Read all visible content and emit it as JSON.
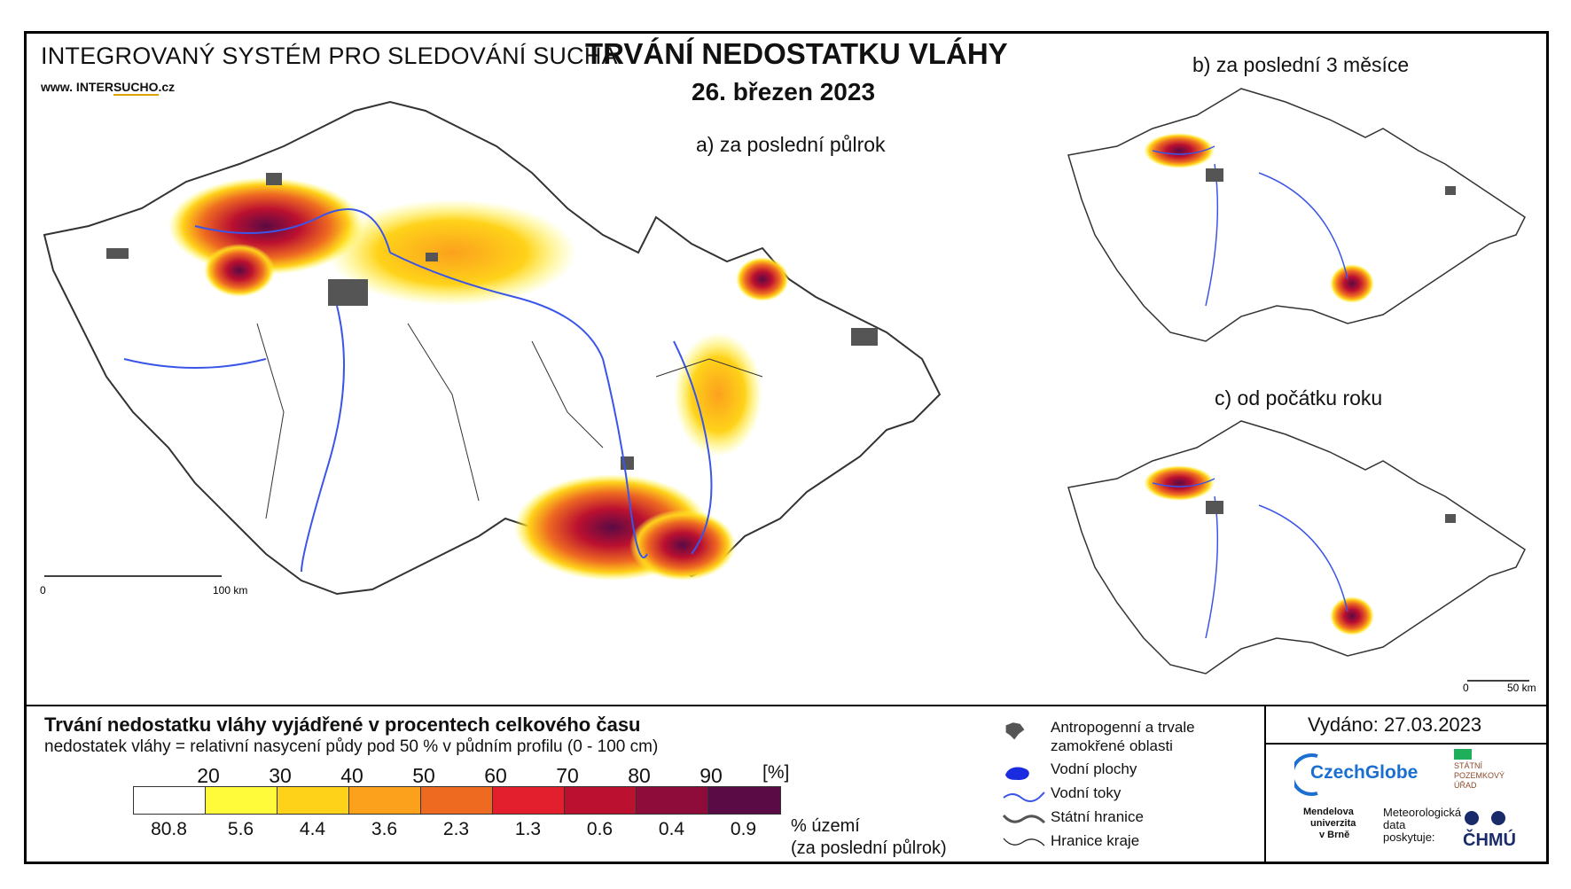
{
  "header": {
    "system_title": "INTEGROVANÝ SYSTÉM PRO SLEDOVÁNÍ SUCHA",
    "website_prefix": "www. INTER",
    "website_accent": "SUCHO",
    "website_suffix": ".cz",
    "main_title": "TRVÁNÍ NEDOSTATKU VLÁHY",
    "date": "26. březen 2023"
  },
  "maps": {
    "a": {
      "label": "a) za poslední půlrok",
      "scale_start": "0",
      "scale_end": "100 km"
    },
    "b": {
      "label": "b) za poslední 3 měsíce"
    },
    "c": {
      "label": "c) od počátku roku",
      "scale_start": "0",
      "scale_end": "50 km"
    }
  },
  "legend": {
    "title": "Trvání nedostatku vláhy vyjádřené v procentech celkového času",
    "subtitle": "nedostatek vláhy = relativní nasycení půdy pod 50 % v půdním profilu (0 - 100 cm)",
    "ticks": [
      "20",
      "30",
      "40",
      "50",
      "60",
      "70",
      "80",
      "90"
    ],
    "unit": "[%]",
    "colors": [
      "#ffffff",
      "#fffb3a",
      "#ffd21a",
      "#fba11c",
      "#ee6a21",
      "#e41f2d",
      "#bb1030",
      "#8e0c3a",
      "#5a0a44"
    ],
    "area_values": [
      "80.8",
      "5.6",
      "4.4",
      "3.6",
      "2.3",
      "1.3",
      "0.6",
      "0.4",
      "0.9"
    ],
    "area_label_1": "% území",
    "area_label_2": "(za poslední půlrok)"
  },
  "key": {
    "anthropogenic_1": "Antropogenní a trvale",
    "anthropogenic_2": "zamokřené oblasti",
    "water_bodies": "Vodní plochy",
    "water_courses": "Vodní toky",
    "state_border": "Státní hranice",
    "region_border": "Hranice kraje"
  },
  "issued": "Vydáno: 27.03.2023",
  "logos": {
    "czechglobe": "CzechGlobe",
    "spu": "STÁTNÍ POZEMKOVÝ ÚŘAD",
    "mendelu_1": "Mendelova",
    "mendelu_2": "univerzita",
    "mendelu_3": "v Brně",
    "meteo_1": "Meteorologická",
    "meteo_2": "data",
    "meteo_3": "poskytuje:",
    "chmu": "ČHMÚ"
  },
  "palette": {
    "river": "#3a55e8",
    "anthro": "#555555",
    "border": "#333333"
  }
}
